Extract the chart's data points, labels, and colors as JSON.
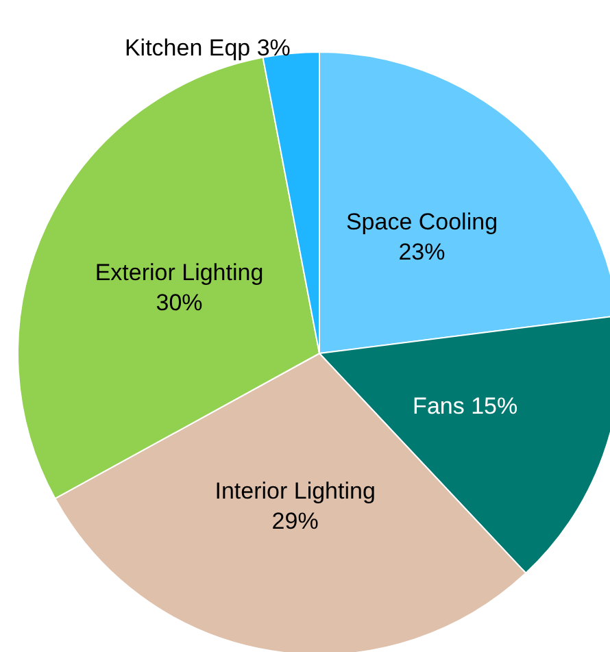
{
  "chart_data": {
    "type": "pie",
    "categories": [
      "Space Cooling",
      "Fans",
      "Interior Lighting",
      "Exterior Lighting",
      "Kitchen Eqp"
    ],
    "values": [
      23,
      15,
      29,
      30,
      3
    ],
    "value_labels": [
      "23%",
      "15%",
      "29%",
      "30%",
      "3%"
    ],
    "colors": [
      "#66ccff",
      "#007a70",
      "#dfc0aa",
      "#92d050",
      "#1fb6ff"
    ],
    "legend": false
  }
}
